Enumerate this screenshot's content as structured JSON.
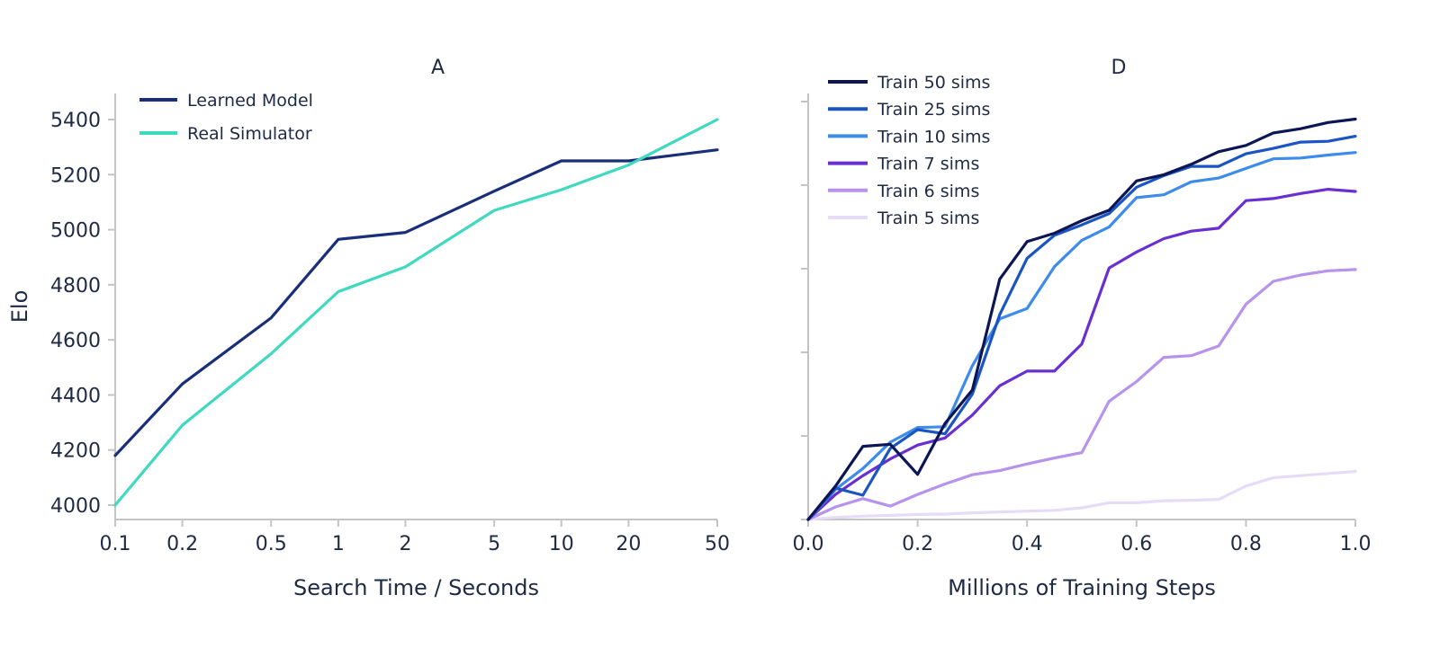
{
  "chart_data": [
    {
      "type": "line",
      "title": "A",
      "xlabel": "Search Time / Seconds",
      "ylabel": "Elo",
      "x_scale": "log",
      "xlim": [
        0.1,
        50
      ],
      "ylim": [
        3950,
        5500
      ],
      "x": [
        0.1,
        0.2,
        0.5,
        1,
        2,
        5,
        10,
        20,
        50
      ],
      "x_ticks": [
        "0.1",
        "0.2",
        "0.5",
        "1",
        "2",
        "5",
        "10",
        "20",
        "50"
      ],
      "y_ticks": [
        4000,
        4200,
        4400,
        4600,
        4800,
        5000,
        5200,
        5400
      ],
      "legend_position": "top-left",
      "grid": false,
      "series": [
        {
          "name": "Learned Model",
          "color": "#1a2f7a",
          "values": [
            4180,
            4440,
            4680,
            4965,
            4990,
            5140,
            5250,
            5250,
            5290
          ]
        },
        {
          "name": "Real Simulator",
          "color": "#3fd9c0",
          "values": [
            4000,
            4290,
            4550,
            4775,
            4865,
            5070,
            5145,
            5235,
            5400
          ]
        }
      ]
    },
    {
      "type": "line",
      "title": "D",
      "xlabel": "Millions of Training Steps",
      "ylabel": "",
      "xlim": [
        0.0,
        1.0
      ],
      "ylim": [
        0,
        1
      ],
      "y_ticks_count": 6,
      "x_ticks": [
        "0.0",
        "0.2",
        "0.4",
        "0.6",
        "0.8",
        "1.0"
      ],
      "legend_position": "top-left",
      "grid": false,
      "x": [
        0.0,
        0.05,
        0.1,
        0.15,
        0.2,
        0.25,
        0.3,
        0.35,
        0.4,
        0.45,
        0.5,
        0.55,
        0.6,
        0.65,
        0.7,
        0.75,
        0.8,
        0.85,
        0.9,
        0.95,
        1.0
      ],
      "series": [
        {
          "name": "Train 50 sims",
          "color": "#0d1654",
          "values": [
            0.0,
            0.08,
            0.175,
            0.18,
            0.108,
            0.23,
            0.31,
            0.575,
            0.665,
            0.685,
            0.715,
            0.74,
            0.81,
            0.825,
            0.85,
            0.88,
            0.895,
            0.925,
            0.935,
            0.95,
            0.958
          ]
        },
        {
          "name": "Train 25 sims",
          "color": "#1b55c4",
          "values": [
            0.0,
            0.075,
            0.058,
            0.17,
            0.215,
            0.205,
            0.3,
            0.49,
            0.625,
            0.68,
            0.705,
            0.732,
            0.795,
            0.823,
            0.845,
            0.845,
            0.875,
            0.888,
            0.903,
            0.905,
            0.917
          ]
        },
        {
          "name": "Train 10 sims",
          "color": "#3d8bea",
          "values": [
            0.0,
            0.072,
            0.122,
            0.185,
            0.22,
            0.222,
            0.368,
            0.48,
            0.505,
            0.605,
            0.668,
            0.7,
            0.77,
            0.777,
            0.808,
            0.817,
            0.84,
            0.863,
            0.865,
            0.872,
            0.878
          ]
        },
        {
          "name": "Train 7 sims",
          "color": "#6a2fd0",
          "values": [
            0.0,
            0.06,
            0.105,
            0.145,
            0.178,
            0.195,
            0.25,
            0.32,
            0.355,
            0.355,
            0.42,
            0.602,
            0.64,
            0.672,
            0.69,
            0.697,
            0.763,
            0.768,
            0.78,
            0.79,
            0.785
          ]
        },
        {
          "name": "Train 6 sims",
          "color": "#b793ec",
          "values": [
            0.0,
            0.03,
            0.05,
            0.032,
            0.06,
            0.085,
            0.107,
            0.117,
            0.133,
            0.147,
            0.16,
            0.283,
            0.33,
            0.388,
            0.392,
            0.415,
            0.515,
            0.57,
            0.585,
            0.595,
            0.598
          ]
        },
        {
          "name": "Train 5 sims",
          "color": "#e6dcf7",
          "values": [
            0.0,
            0.005,
            0.008,
            0.01,
            0.012,
            0.013,
            0.016,
            0.018,
            0.02,
            0.022,
            0.028,
            0.04,
            0.04,
            0.045,
            0.046,
            0.048,
            0.08,
            0.1,
            0.105,
            0.11,
            0.115
          ]
        }
      ]
    }
  ]
}
